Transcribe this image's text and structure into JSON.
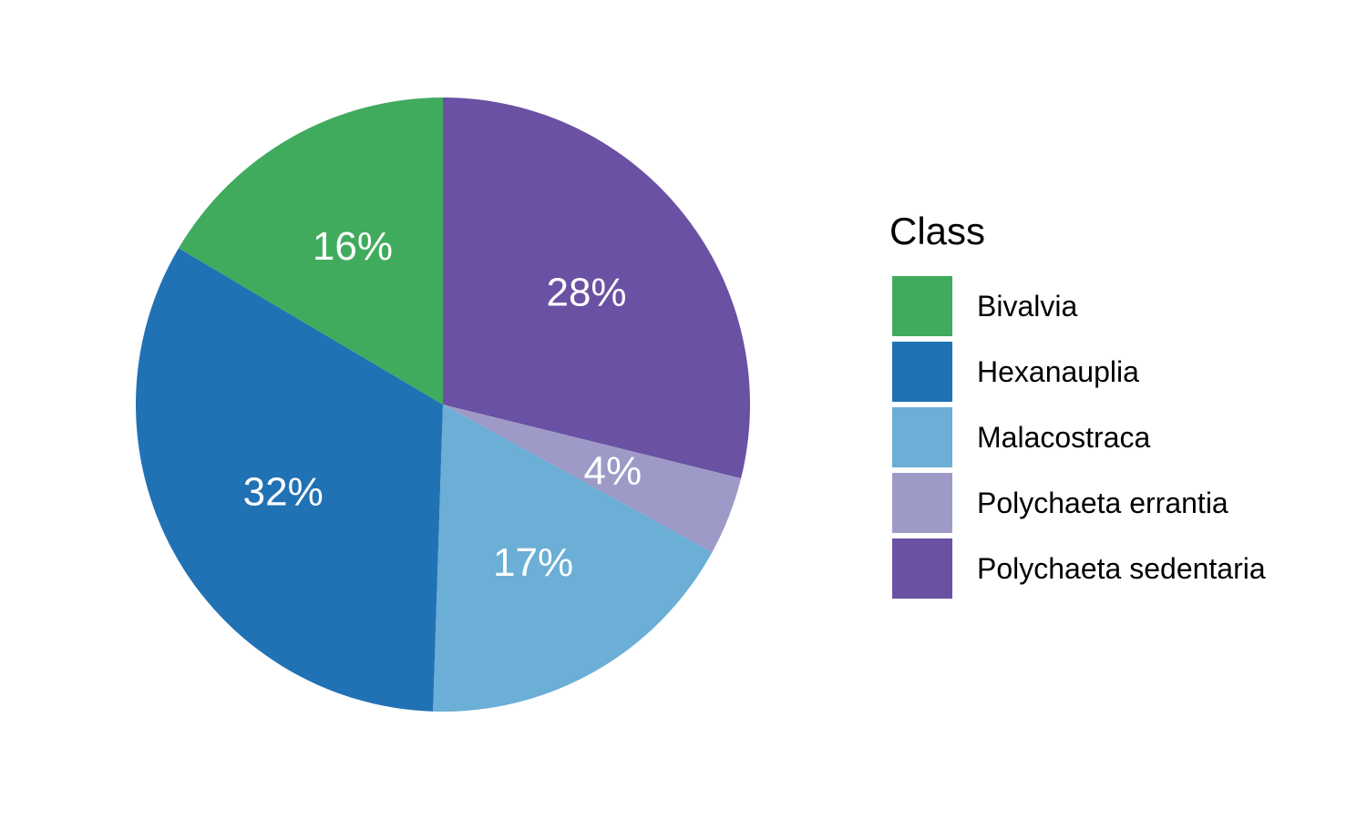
{
  "chart_data": {
    "type": "pie",
    "legend_title": "Class",
    "legend_placement": "right",
    "start": "top",
    "direction": "counterclockwise",
    "slices": [
      {
        "name": "Polychaeta sedentaria",
        "value": 28,
        "label": "28%",
        "color": "#6a51a3"
      },
      {
        "name": "Polychaeta errantia",
        "value": 4,
        "label": "4%",
        "color": "#9e9ac8"
      },
      {
        "name": "Malacostraca",
        "value": 17,
        "label": "17%",
        "color": "#6baed6"
      },
      {
        "name": "Hexanauplia",
        "value": 32,
        "label": "32%",
        "color": "#2171b5"
      },
      {
        "name": "Bivalvia",
        "value": 16,
        "label": "16%",
        "color": "#41ab5d"
      }
    ],
    "legend_order": [
      "Bivalvia",
      "Hexanauplia",
      "Malacostraca",
      "Polychaeta errantia",
      "Polychaeta sedentaria"
    ]
  }
}
